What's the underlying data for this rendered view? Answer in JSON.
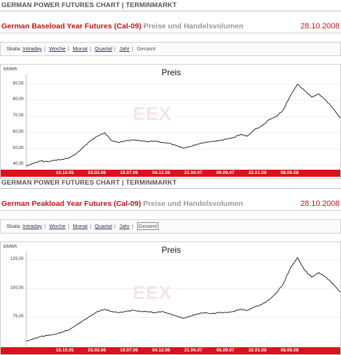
{
  "panels": [
    {
      "header": "GERMAN POWER FUTURES CHART | TERMINMARKT",
      "title": "German Baseload Year Futures (Cal-09)",
      "subtitle": "Preise und Handelsvolumen",
      "date": "28.10.2008",
      "scale": {
        "label": "Skala:",
        "options": [
          "Intraday",
          "Woche",
          "Monat",
          "Quartal",
          "Jahr"
        ],
        "selected": "Gesamt"
      },
      "chart_label": "Preis",
      "unit": "€/MWh",
      "watermark": "EEX",
      "accent": "#d81418"
    },
    {
      "header": "GERMAN POWER FUTURES CHART | TERMINMARKT",
      "title": "German Peakload Year Futures (Cal-09)",
      "subtitle": "Preise und Handelsvolumen",
      "date": "28.10.2008",
      "scale": {
        "label": "Skala:",
        "options": [
          "Intraday",
          "Woche",
          "Monat",
          "Quartal",
          "Jahr"
        ],
        "selected": "Gesamt"
      },
      "chart_label": "Preis",
      "unit": "€/MWh",
      "watermark": "EEX",
      "accent": "#d81418"
    }
  ],
  "chart_data": [
    {
      "type": "line",
      "title": "Preis",
      "ylabel": "€/MWh",
      "ylim": [
        38,
        96
      ],
      "yticks": [
        "40,00",
        "50,00",
        "60,00",
        "70,00",
        "80,00",
        "90,00"
      ],
      "ytick_values": [
        40,
        50,
        60,
        70,
        80,
        90
      ],
      "xticks": [
        "16.10.05",
        "03.03.06",
        "19.07.06",
        "04.12.06",
        "21.04.07",
        "06.09.07",
        "22.01.08",
        "08.06.08"
      ],
      "xtick_index": [
        5.4,
        9.9,
        14.4,
        18.9,
        23.4,
        27.9,
        32.4,
        36.9
      ],
      "series": [
        {
          "values": [
            39.5,
            41,
            42.5,
            42,
            43,
            43.5,
            44.5,
            47,
            51,
            55,
            58,
            60,
            55,
            54,
            55,
            55.5,
            55,
            54.5,
            55,
            54,
            53.5,
            52,
            50.5,
            51.5,
            53,
            54,
            54.5,
            55,
            56,
            57,
            59,
            58,
            62,
            64,
            68,
            70,
            74,
            83,
            90,
            86,
            82,
            84,
            80,
            75,
            69
          ]
        }
      ]
    },
    {
      "type": "line",
      "title": "Preis",
      "ylabel": "€/MWh",
      "ylim": [
        50,
        132
      ],
      "yticks": [
        "75,00",
        "100,00",
        "125,00"
      ],
      "ytick_values": [
        75,
        100,
        125
      ],
      "xticks": [
        "16.10.05",
        "03.03.06",
        "19.07.06",
        "04.12.06",
        "21.04.07",
        "06.09.07",
        "22.01.08",
        "08.06.08"
      ],
      "xtick_index": [
        5.4,
        9.9,
        14.4,
        18.9,
        23.4,
        27.9,
        32.4,
        36.9
      ],
      "series": [
        {
          "values": [
            54,
            56,
            58,
            59,
            60,
            62,
            64,
            68,
            72,
            76,
            80,
            82,
            80,
            79,
            80,
            81,
            80,
            80,
            79,
            80,
            78,
            76,
            74,
            76,
            78,
            79,
            78,
            79,
            79,
            80,
            82,
            81,
            84,
            86,
            90,
            96,
            104,
            118,
            127,
            116,
            110,
            114,
            110,
            104,
            97
          ]
        }
      ]
    }
  ]
}
